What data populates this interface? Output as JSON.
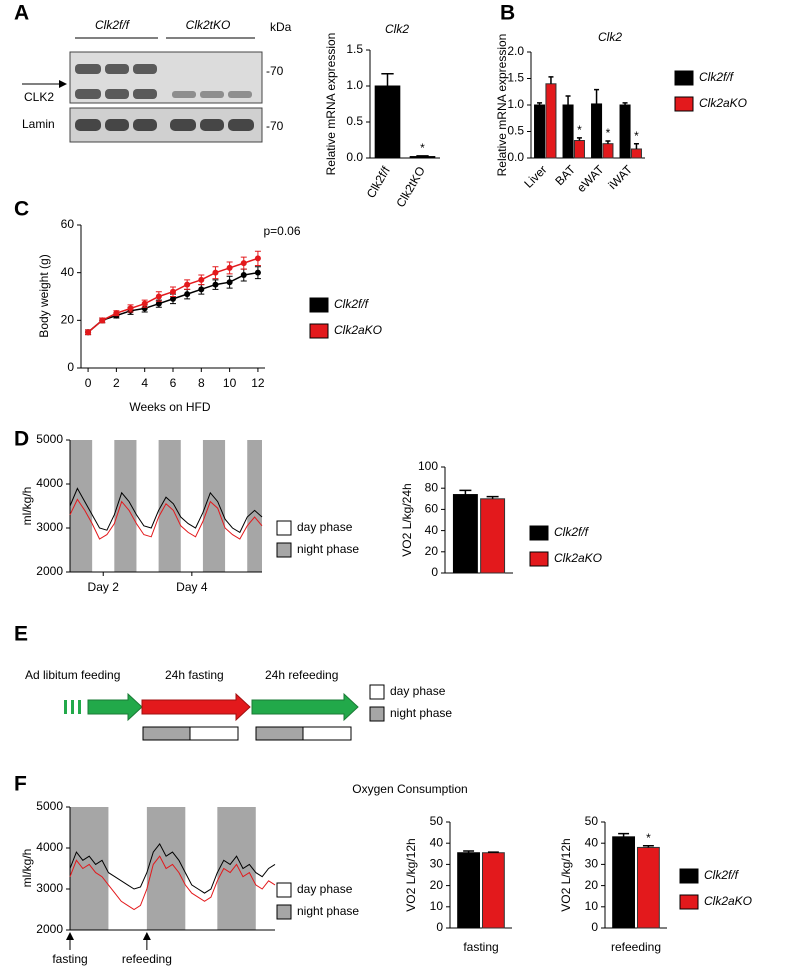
{
  "panel_labels": [
    "A",
    "B",
    "C",
    "D",
    "E",
    "F"
  ],
  "blot": {
    "header": [
      "Clk2f/f",
      "Clk2tKO"
    ],
    "unit": "kDa",
    "rows": [
      {
        "label": "CLK2",
        "marker": "-70"
      },
      {
        "label": "Lamin",
        "marker": "-70"
      }
    ]
  },
  "diagram": {
    "stages": [
      "Ad libitum feeding",
      "24h fasting",
      "24h refeeding"
    ],
    "legend": [
      "day phase",
      "night phase"
    ]
  },
  "chart_data": [
    {
      "type": "bar",
      "title": "Clk2",
      "ylabel": "Relative mRNA  expression",
      "categories": [
        "Clk2f/f",
        "Clk2tKO"
      ],
      "values": [
        1.0,
        0.02
      ],
      "errors": [
        0.17,
        0.01
      ],
      "color": "#000000",
      "significance": [
        null,
        "*"
      ],
      "ylim": [
        0,
        1.5
      ],
      "yticks": [
        {
          "value": 0,
          "label": "0.0"
        },
        0.5,
        {
          "value": 1,
          "label": "1.0"
        },
        1.5
      ],
      "legend": false
    },
    {
      "type": "bar",
      "title": "Clk2",
      "ylabel": "Relative mRNA  expression",
      "categories": [
        "Liver",
        "BAT",
        "eWAT",
        "iWAT"
      ],
      "series": [
        {
          "name": "Clk2f/f",
          "color": "#000000",
          "values": [
            1.0,
            1.0,
            1.02,
            1.0
          ],
          "errors": [
            0.04,
            0.17,
            0.27,
            0.04
          ]
        },
        {
          "name": "Clk2aKO",
          "color": "#e3191c",
          "values": [
            1.4,
            0.33,
            0.27,
            0.17
          ],
          "errors": [
            0.13,
            0.05,
            0.05,
            0.1
          ],
          "significance": [
            null,
            "*",
            "*",
            "*"
          ]
        }
      ],
      "ylim": [
        0,
        2
      ],
      "yticks": [
        {
          "value": 0,
          "label": "0.0"
        },
        0.5,
        {
          "value": 1,
          "label": "1.0"
        },
        1.5,
        {
          "value": 2,
          "label": "2.0"
        }
      ],
      "legend": "right"
    },
    {
      "type": "line",
      "ylabel": "Body weight (g)",
      "xlabel": "Weeks on HFD",
      "annotation": "p=0.06",
      "x": [
        0,
        1,
        2,
        3,
        4,
        5,
        6,
        7,
        8,
        9,
        10,
        11,
        12
      ],
      "xlim": [
        -0.5,
        12.5
      ],
      "xticks": [
        0,
        2,
        4,
        6,
        8,
        10,
        12
      ],
      "ylim": [
        0,
        60
      ],
      "yticks": [
        0,
        20,
        40,
        60
      ],
      "markers": true,
      "series": [
        {
          "name": "Clk2f/f",
          "color": "#000000",
          "values": [
            15,
            20,
            22,
            24,
            25,
            27,
            29,
            31,
            33,
            35,
            36,
            39,
            40
          ],
          "errors": [
            1,
            1,
            1,
            1.5,
            1.5,
            1.5,
            2,
            2,
            2,
            2,
            2.5,
            2.5,
            2.5
          ]
        },
        {
          "name": "Clk2aKO",
          "color": "#e3191c",
          "values": [
            15,
            20,
            23,
            25,
            27,
            30,
            32,
            35,
            37,
            40,
            42,
            44,
            46
          ],
          "errors": [
            1,
            1,
            1,
            1.5,
            1.5,
            2,
            2,
            2,
            2,
            2.5,
            2.5,
            2.5,
            3
          ]
        }
      ],
      "legend": "right"
    },
    {
      "type": "line",
      "ylabel": "ml/kg/h",
      "x": [
        0,
        4,
        8,
        12,
        16,
        20,
        24,
        28,
        32,
        36,
        40,
        44,
        48,
        52,
        56,
        60,
        64,
        68,
        72,
        76,
        80,
        84,
        88,
        92,
        96,
        100,
        104
      ],
      "xlim": [
        0,
        104
      ],
      "xticks": [
        {
          "value": 18,
          "label": "Day 2"
        },
        {
          "value": 66,
          "label": "Day 4"
        }
      ],
      "ylim": [
        2000,
        5000
      ],
      "yticks": [
        2000,
        3000,
        4000,
        5000
      ],
      "night_bands": [
        [
          0,
          12
        ],
        [
          24,
          36
        ],
        [
          48,
          60
        ],
        [
          72,
          84
        ],
        [
          96,
          104
        ]
      ],
      "band_legend": [
        "day phase",
        "night phase"
      ],
      "series": [
        {
          "color": "#e3191c",
          "values": [
            3300,
            3650,
            3400,
            3100,
            2750,
            2850,
            3100,
            3600,
            3400,
            3100,
            2850,
            2800,
            3250,
            3550,
            3400,
            3050,
            2900,
            2800,
            3150,
            3600,
            3450,
            3000,
            2850,
            2750,
            3050,
            3250,
            3050
          ]
        },
        {
          "color": "#000000",
          "values": [
            3500,
            3900,
            3600,
            3300,
            3000,
            2950,
            3300,
            3800,
            3600,
            3300,
            3050,
            3000,
            3400,
            3700,
            3550,
            3250,
            3100,
            3000,
            3350,
            3800,
            3600,
            3200,
            3000,
            2900,
            3250,
            3400,
            3250
          ]
        }
      ],
      "legend": false
    },
    {
      "type": "bar",
      "ylabel": "VO2 L/kg/24h",
      "categories": [
        null
      ],
      "series": [
        {
          "name": "Clk2f/f",
          "color": "#000000",
          "values": [
            74
          ],
          "errors": [
            4
          ]
        },
        {
          "name": "Clk2aKO",
          "color": "#e3191c",
          "values": [
            70
          ],
          "errors": [
            2
          ]
        }
      ],
      "ylim": [
        0,
        100
      ],
      "yticks": [
        0,
        20,
        40,
        60,
        80,
        100
      ],
      "legend": "right"
    },
    {
      "type": "line",
      "ylabel": "ml/kg/h",
      "x": [
        0,
        2,
        4,
        6,
        8,
        10,
        12,
        14,
        16,
        18,
        20,
        22,
        24,
        26,
        28,
        30,
        32,
        34,
        36,
        38,
        40,
        42,
        44,
        46,
        48,
        50,
        52,
        54,
        56,
        58,
        60,
        62,
        64
      ],
      "xlim": [
        0,
        64
      ],
      "xticks": [
        {
          "value": 0,
          "label": "fasting"
        },
        {
          "value": 24,
          "label": "refeeding"
        }
      ],
      "ylim": [
        2000,
        5000
      ],
      "yticks": [
        2000,
        3000,
        4000,
        5000
      ],
      "night_bands": [
        [
          0,
          12
        ],
        [
          24,
          36
        ],
        [
          46,
          58
        ]
      ],
      "band_legend": [
        "day phase",
        "night phase"
      ],
      "series": [
        {
          "color": "#e3191c",
          "values": [
            3300,
            3700,
            3500,
            3600,
            3400,
            3300,
            3100,
            2900,
            2700,
            2600,
            2500,
            2600,
            3000,
            3600,
            3800,
            3500,
            3600,
            3400,
            3100,
            2900,
            2800,
            2700,
            2800,
            3200,
            3500,
            3400,
            3600,
            3300,
            3400,
            3100,
            3000,
            3200,
            3100
          ]
        },
        {
          "color": "#000000",
          "values": [
            3500,
            3900,
            3700,
            3800,
            3600,
            3700,
            3400,
            3300,
            3200,
            3100,
            3000,
            3050,
            3400,
            3900,
            4100,
            3800,
            3900,
            3700,
            3400,
            3100,
            3000,
            2900,
            3000,
            3400,
            3700,
            3600,
            3800,
            3500,
            3600,
            3400,
            3300,
            3500,
            3600
          ]
        }
      ],
      "legend": false
    },
    {
      "type": "bar",
      "title": "Oxygen Consumption",
      "ylabel": "VO2 L/kg/12h",
      "xlabel": "fasting",
      "categories": [
        null
      ],
      "series": [
        {
          "name": "Clk2f/f",
          "color": "#000000",
          "values": [
            35.5
          ],
          "errors": [
            0.8
          ]
        },
        {
          "name": "Clk2aKO",
          "color": "#e3191c",
          "values": [
            35.5
          ],
          "errors": [
            0.3
          ]
        }
      ],
      "ylim": [
        0,
        50
      ],
      "yticks": [
        0,
        10,
        20,
        30,
        40,
        50
      ],
      "legend": false
    },
    {
      "type": "bar",
      "ylabel": "VO2 L/kg/12h",
      "xlabel": "refeeding",
      "categories": [
        null
      ],
      "series": [
        {
          "name": "Clk2f/f",
          "color": "#000000",
          "values": [
            43
          ],
          "errors": [
            1.5
          ]
        },
        {
          "name": "Clk2aKO",
          "color": "#e3191c",
          "values": [
            38
          ],
          "errors": [
            0.8
          ],
          "significance": [
            "*"
          ]
        }
      ],
      "ylim": [
        0,
        50
      ],
      "yticks": [
        0,
        10,
        20,
        30,
        40,
        50
      ],
      "legend": "right"
    }
  ]
}
